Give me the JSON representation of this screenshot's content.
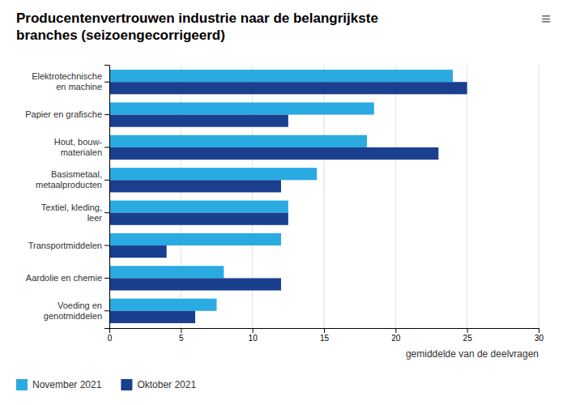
{
  "chart_data": {
    "type": "bar",
    "orientation": "horizontal",
    "title": "Producentenvertrouwen industrie naar de belangrijkste\nbranches (seizoengecorrigeerd)",
    "annotations": [
      "≡"
    ],
    "categories": [
      "Elektrotechnische\nen machine",
      "Papier en grafische",
      "Hout, bouw-\nmaterialen",
      "Basismetaal,\nmetaalproducten",
      "Textiel, kleding,\nleer",
      "Transportmiddelen",
      "Aardolie en chemie",
      "Voeding en\ngenotmiddelen"
    ],
    "series": [
      {
        "name": "November 2021",
        "color": "#29ABE2",
        "values": [
          24,
          18.5,
          18,
          14.5,
          12.5,
          12,
          8,
          7.5
        ]
      },
      {
        "name": "Oktober 2021",
        "color": "#1B3F8F",
        "values": [
          25,
          12.5,
          23,
          12,
          12.5,
          4,
          12,
          6
        ]
      }
    ],
    "xlabel": "gemiddelde van de deelvragen",
    "xlim": [
      0,
      30
    ],
    "xticks": [
      0,
      5,
      10,
      15,
      20,
      25,
      30
    ],
    "grid": true,
    "legend": "bottom-left"
  }
}
